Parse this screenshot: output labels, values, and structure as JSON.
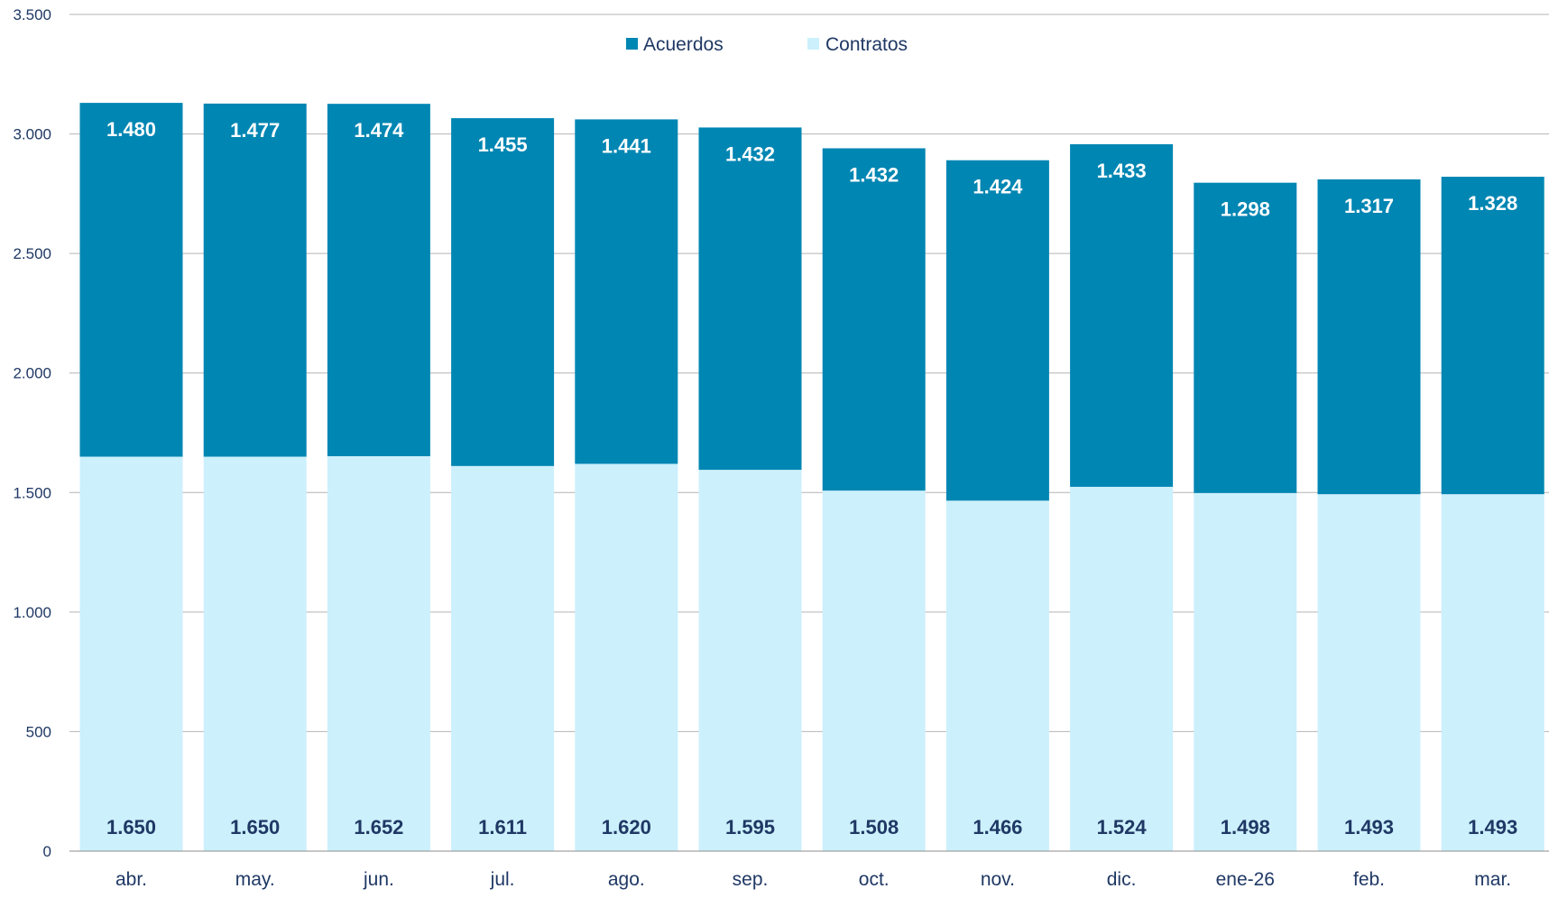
{
  "colors": {
    "acuerdos": "#0086b3",
    "contratos": "#ccf0fc",
    "grid": "#b4b4b4",
    "axis_text": "#1f3864"
  },
  "chart_data": {
    "type": "bar",
    "stacked": true,
    "title": "",
    "xlabel": "",
    "ylabel": "",
    "ylim": [
      0,
      3500
    ],
    "yticks": [
      0,
      500,
      1000,
      1500,
      2000,
      2500,
      3000,
      3500
    ],
    "ytick_labels": [
      "0",
      "500",
      "1.000",
      "1.500",
      "2.000",
      "2.500",
      "3.000",
      "3.500"
    ],
    "grid": true,
    "legend_position": "top",
    "categories": [
      "abr.",
      "may.",
      "jun.",
      "jul.",
      "ago.",
      "sep.",
      "oct.",
      "nov.",
      "dic.",
      "ene-26",
      "feb.",
      "mar."
    ],
    "series": [
      {
        "name": "Contratos",
        "values": [
          1650,
          1650,
          1652,
          1611,
          1620,
          1595,
          1508,
          1466,
          1524,
          1498,
          1493,
          1493
        ],
        "labels": [
          "1.650",
          "1.650",
          "1.652",
          "1.611",
          "1.620",
          "1.595",
          "1.508",
          "1.466",
          "1.524",
          "1.498",
          "1.493",
          "1.493"
        ]
      },
      {
        "name": "Acuerdos",
        "values": [
          1480,
          1477,
          1474,
          1455,
          1441,
          1432,
          1432,
          1424,
          1433,
          1298,
          1317,
          1328
        ],
        "labels": [
          "1.480",
          "1.477",
          "1.474",
          "1.455",
          "1.441",
          "1.432",
          "1.432",
          "1.424",
          "1.433",
          "1.298",
          "1.317",
          "1.328"
        ]
      }
    ],
    "legend": [
      {
        "name": "Acuerdos",
        "color_key": "acuerdos"
      },
      {
        "name": "Contratos",
        "color_key": "contratos"
      }
    ]
  }
}
